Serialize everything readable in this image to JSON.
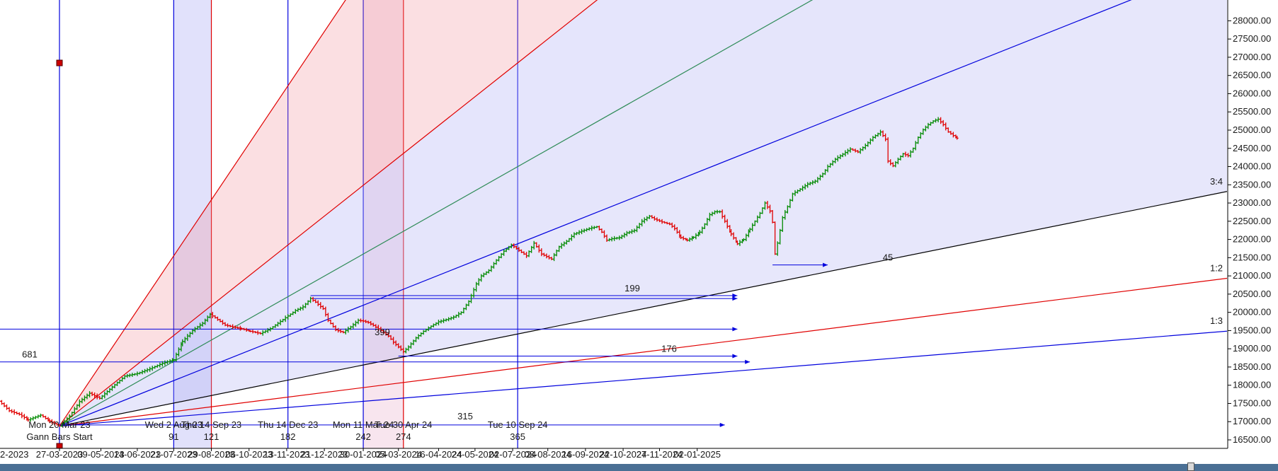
{
  "chart_data": {
    "type": "candlestick",
    "y_axis": {
      "range": [
        16500,
        28200
      ],
      "position": "right",
      "ticks": [
        16500,
        17000,
        17500,
        18000,
        18500,
        19000,
        19500,
        20000,
        20500,
        21000,
        21500,
        22000,
        22500,
        23000,
        23500,
        24000,
        24500,
        25000,
        25500,
        26000,
        26500,
        27000,
        27500,
        28000
      ]
    },
    "x_axis": {
      "tick_labels": [
        "2-2023",
        "27-03-2023",
        "09-05-2023",
        "14-06-2023",
        "21-07-2023",
        "29-08-2023",
        "06-10-2023",
        "13-11-2023",
        "21-12-2023",
        "30-01-2024",
        "05-03-2024",
        "16-04-2024",
        "24-05-2024",
        "02-07-2024",
        "08-08-2024",
        "16-09-2024",
        "22-10-2024",
        "27-11-2024",
        "02-01-2025"
      ],
      "tick_bars": [
        -62,
        0,
        33,
        62,
        91,
        121,
        151,
        181,
        211,
        242,
        270,
        302,
        331,
        361,
        389,
        419,
        449,
        478,
        508
      ]
    },
    "grid": false,
    "price_path": [
      [
        -85,
        18120
      ],
      [
        -78,
        17950
      ],
      [
        -70,
        17720
      ],
      [
        -62,
        17660
      ],
      [
        -55,
        17800
      ],
      [
        -48,
        17560
      ],
      [
        -40,
        17300
      ],
      [
        -32,
        17200
      ],
      [
        -25,
        17050
      ],
      [
        -15,
        17180
      ],
      [
        -8,
        17020
      ],
      [
        0,
        16880
      ],
      [
        8,
        17150
      ],
      [
        16,
        17550
      ],
      [
        24,
        17780
      ],
      [
        32,
        17640
      ],
      [
        42,
        17950
      ],
      [
        52,
        18250
      ],
      [
        62,
        18320
      ],
      [
        72,
        18450
      ],
      [
        82,
        18600
      ],
      [
        91,
        18700
      ],
      [
        98,
        19200
      ],
      [
        106,
        19500
      ],
      [
        114,
        19700
      ],
      [
        120,
        19950
      ],
      [
        126,
        19800
      ],
      [
        132,
        19650
      ],
      [
        138,
        19600
      ],
      [
        145,
        19550
      ],
      [
        152,
        19480
      ],
      [
        160,
        19420
      ],
      [
        168,
        19550
      ],
      [
        174,
        19700
      ],
      [
        180,
        19850
      ],
      [
        188,
        20050
      ],
      [
        194,
        20150
      ],
      [
        200,
        20380
      ],
      [
        204,
        20280
      ],
      [
        210,
        20100
      ],
      [
        214,
        19780
      ],
      [
        220,
        19520
      ],
      [
        226,
        19450
      ],
      [
        232,
        19600
      ],
      [
        238,
        19780
      ],
      [
        242,
        19760
      ],
      [
        246,
        19720
      ],
      [
        250,
        19640
      ],
      [
        256,
        19500
      ],
      [
        262,
        19350
      ],
      [
        266,
        19180
      ],
      [
        270,
        19050
      ],
      [
        274,
        18920
      ],
      [
        278,
        19050
      ],
      [
        284,
        19300
      ],
      [
        290,
        19480
      ],
      [
        296,
        19620
      ],
      [
        302,
        19740
      ],
      [
        308,
        19800
      ],
      [
        314,
        19870
      ],
      [
        320,
        20000
      ],
      [
        326,
        20300
      ],
      [
        332,
        20780
      ],
      [
        336,
        21000
      ],
      [
        342,
        21150
      ],
      [
        348,
        21430
      ],
      [
        354,
        21680
      ],
      [
        360,
        21850
      ],
      [
        366,
        21700
      ],
      [
        372,
        21550
      ],
      [
        378,
        21900
      ],
      [
        384,
        21600
      ],
      [
        392,
        21460
      ],
      [
        398,
        21800
      ],
      [
        404,
        21950
      ],
      [
        410,
        22150
      ],
      [
        416,
        22230
      ],
      [
        422,
        22300
      ],
      [
        428,
        22350
      ],
      [
        432,
        22200
      ],
      [
        436,
        21980
      ],
      [
        440,
        22020
      ],
      [
        446,
        22050
      ],
      [
        452,
        22180
      ],
      [
        458,
        22250
      ],
      [
        464,
        22500
      ],
      [
        470,
        22640
      ],
      [
        474,
        22560
      ],
      [
        480,
        22480
      ],
      [
        486,
        22420
      ],
      [
        490,
        22300
      ],
      [
        495,
        22050
      ],
      [
        500,
        21980
      ],
      [
        505,
        22060
      ],
      [
        510,
        22200
      ],
      [
        514,
        22420
      ],
      [
        518,
        22680
      ],
      [
        522,
        22760
      ],
      [
        526,
        22760
      ],
      [
        530,
        22500
      ],
      [
        535,
        22150
      ],
      [
        540,
        21880
      ],
      [
        545,
        22000
      ],
      [
        550,
        22280
      ],
      [
        554,
        22500
      ],
      [
        558,
        22720
      ],
      [
        562,
        23000
      ],
      [
        566,
        22780
      ],
      [
        568,
        22470
      ],
      [
        570,
        21600
      ],
      [
        572,
        21900
      ],
      [
        576,
        22600
      ],
      [
        580,
        22900
      ],
      [
        584,
        23250
      ],
      [
        590,
        23380
      ],
      [
        596,
        23520
      ],
      [
        602,
        23600
      ],
      [
        608,
        23800
      ],
      [
        612,
        24000
      ],
      [
        618,
        24200
      ],
      [
        624,
        24340
      ],
      [
        630,
        24480
      ],
      [
        636,
        24400
      ],
      [
        642,
        24580
      ],
      [
        648,
        24800
      ],
      [
        654,
        24950
      ],
      [
        658,
        24750
      ],
      [
        660,
        24150
      ],
      [
        664,
        24020
      ],
      [
        668,
        24200
      ],
      [
        672,
        24350
      ],
      [
        676,
        24300
      ],
      [
        680,
        24500
      ],
      [
        684,
        24800
      ],
      [
        688,
        25010
      ],
      [
        692,
        25150
      ],
      [
        696,
        25250
      ],
      [
        700,
        25300
      ],
      [
        704,
        25150
      ],
      [
        708,
        24950
      ],
      [
        712,
        24850
      ],
      [
        715,
        24780
      ]
    ],
    "gann_angles": [
      {
        "label": "3:4",
        "color": "#000000"
      },
      {
        "label": "1:2",
        "color": "#e00000"
      },
      {
        "label": "1:3",
        "color": "#0000dd"
      }
    ],
    "gann_fan_rays": [
      {
        "slope": 51.3,
        "color": "#e00000"
      },
      {
        "slope": 27.3,
        "color": "#e00000"
      },
      {
        "slope": 19.5,
        "color": "#2e8b57"
      },
      {
        "slope": 13.7,
        "color": "#0000dd"
      },
      {
        "slope": 6.92,
        "color": "#000000"
      },
      {
        "slope": 4.36,
        "color": "#e00000"
      },
      {
        "slope": 2.8,
        "color": "#0000dd"
      }
    ],
    "time_cycles": [
      {
        "bar": 0,
        "color": "#0000dd",
        "date_label": "Mon 20 Mar 23",
        "count_label": ""
      },
      {
        "bar": 91,
        "color": "#0000dd",
        "date_label": "Wed 2 Aug 23",
        "count_label": "91"
      },
      {
        "bar": 121,
        "color": "#e00000",
        "date_label": "Thu 14 Sep 23",
        "count_label": "121"
      },
      {
        "bar": 182,
        "color": "#0000dd",
        "date_label": "Thu 14 Dec 23",
        "count_label": "182"
      },
      {
        "bar": 242,
        "color": "#0000dd",
        "date_label": "Mon 11 Mar 24",
        "count_label": "242"
      },
      {
        "bar": 274,
        "color": "#e00000",
        "date_label": "Tue 30 Apr 24",
        "count_label": "274"
      },
      {
        "bar": 365,
        "color": "#0000dd",
        "date_label": "Tue 10 Sep 24",
        "count_label": "365"
      }
    ],
    "shaded_zones": [
      {
        "from_bar": 91,
        "to_bar": 121,
        "color": "#c8c8f8"
      },
      {
        "from_bar": 242,
        "to_bar": 274,
        "color": "#f3cfe0"
      }
    ],
    "horizontal_projections": [
      {
        "label": "681",
        "from_bar": -200,
        "to_bar": 550,
        "price": 18640
      },
      {
        "label": "",
        "from_bar": -200,
        "to_bar": 540,
        "price": 19540
      },
      {
        "label": "399",
        "from_bar": 200,
        "to_bar": 540,
        "price": 20380
      },
      {
        "label": "199",
        "from_bar": 200,
        "to_bar": 540,
        "price": 20460
      },
      {
        "label": "176",
        "from_bar": 270,
        "to_bar": 540,
        "price": 18800
      },
      {
        "label": "45",
        "from_bar": 568,
        "to_bar": 612,
        "price": 21300
      },
      {
        "label": "315",
        "from_bar": 0,
        "to_bar": 530,
        "price": 16910
      }
    ],
    "annotations": [
      "Gann Bars Start"
    ],
    "origin": {
      "bar": 0,
      "price": 16880
    }
  }
}
